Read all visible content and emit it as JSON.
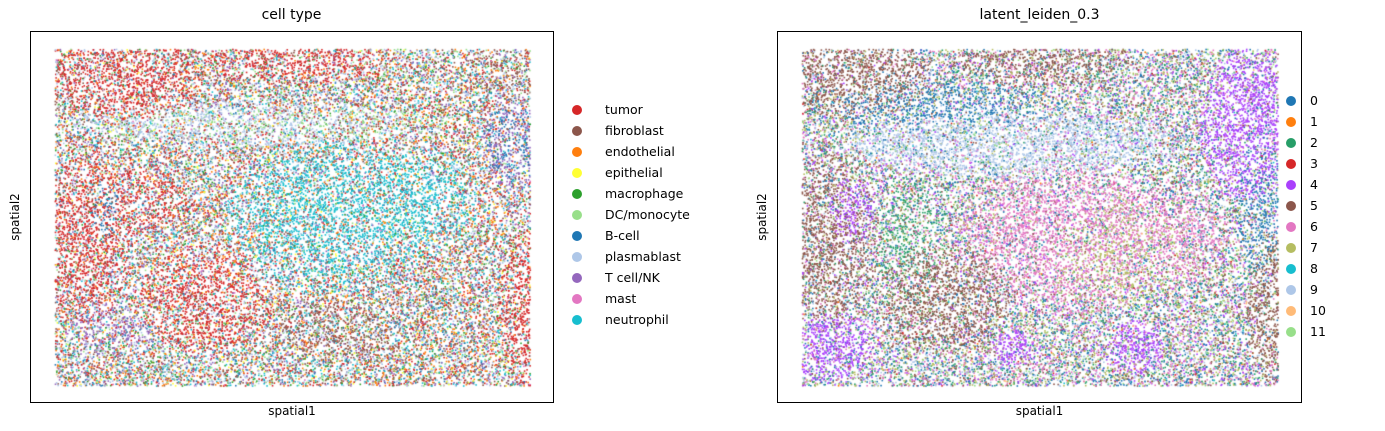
{
  "chart_data": [
    {
      "type": "scatter",
      "title": "cell type",
      "xlabel": "spatial1",
      "ylabel": "spatial2",
      "grid": false,
      "ticks": false,
      "legend_position": "right",
      "legend": [
        {
          "name": "tumor",
          "color": "#d62728"
        },
        {
          "name": "fibroblast",
          "color": "#8c564b"
        },
        {
          "name": "endothelial",
          "color": "#ff7f0e"
        },
        {
          "name": "epithelial",
          "color": "#ffff33"
        },
        {
          "name": "macrophage",
          "color": "#2ca02c"
        },
        {
          "name": "DC/monocyte",
          "color": "#98df8a"
        },
        {
          "name": "B-cell",
          "color": "#1f77b4"
        },
        {
          "name": "plasmablast",
          "color": "#aec7e8"
        },
        {
          "name": "T cell/NK",
          "color": "#9467bd"
        },
        {
          "name": "mast",
          "color": "#e377c2"
        },
        {
          "name": "neutrophil",
          "color": "#17becf"
        }
      ]
    },
    {
      "type": "scatter",
      "title": "latent_leiden_0.3",
      "xlabel": "spatial1",
      "ylabel": "spatial2",
      "grid": false,
      "ticks": false,
      "legend_position": "right",
      "legend": [
        {
          "name": "0",
          "color": "#1f77b4"
        },
        {
          "name": "1",
          "color": "#ff7f0e"
        },
        {
          "name": "2",
          "color": "#279e68"
        },
        {
          "name": "3",
          "color": "#d62728"
        },
        {
          "name": "4",
          "color": "#aa40fc"
        },
        {
          "name": "5",
          "color": "#8c564b"
        },
        {
          "name": "6",
          "color": "#e377c2"
        },
        {
          "name": "7",
          "color": "#b5bd61"
        },
        {
          "name": "8",
          "color": "#17becf"
        },
        {
          "name": "9",
          "color": "#aec7e8"
        },
        {
          "name": "10",
          "color": "#ffbb78"
        },
        {
          "name": "11",
          "color": "#98df8a"
        }
      ]
    }
  ]
}
